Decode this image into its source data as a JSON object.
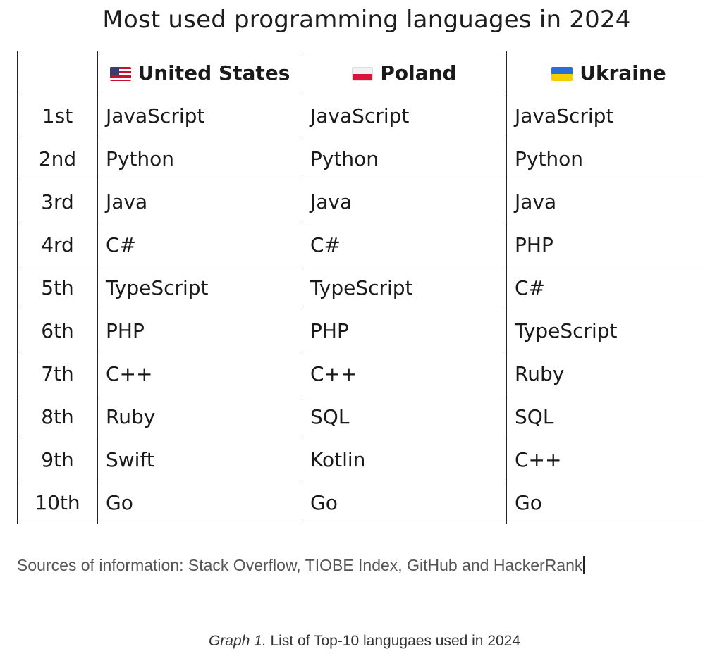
{
  "title": "Most used programming languages in 2024",
  "table": {
    "columns": [
      {
        "flag": "flag-us-icon",
        "label": "United States"
      },
      {
        "flag": "flag-pl-icon",
        "label": "Poland"
      },
      {
        "flag": "flag-ua-icon",
        "label": "Ukraine"
      }
    ],
    "rows": [
      {
        "rank": "1st",
        "values": [
          "JavaScript",
          "JavaScript",
          "JavaScript"
        ]
      },
      {
        "rank": "2nd",
        "values": [
          "Python",
          "Python",
          "Python"
        ]
      },
      {
        "rank": "3rd",
        "values": [
          "Java",
          "Java",
          "Java"
        ]
      },
      {
        "rank": "4rd",
        "values": [
          "C#",
          "C#",
          "PHP"
        ]
      },
      {
        "rank": "5th",
        "values": [
          "TypeScript",
          "TypeScript",
          "C#"
        ]
      },
      {
        "rank": "6th",
        "values": [
          "PHP",
          "PHP",
          "TypeScript"
        ]
      },
      {
        "rank": "7th",
        "values": [
          "C++",
          "C++",
          "Ruby"
        ]
      },
      {
        "rank": "8th",
        "values": [
          "Ruby",
          "SQL",
          "SQL"
        ]
      },
      {
        "rank": "9th",
        "values": [
          "Swift",
          "Kotlin",
          "C++"
        ]
      },
      {
        "rank": "10th",
        "values": [
          "Go",
          "Go",
          "Go"
        ]
      }
    ]
  },
  "sources": "Sources of information: Stack Overflow, TIOBE Index, GitHub and HackerRank",
  "caption": {
    "label": "Graph 1.",
    "text": " List of Top-10 langugaes used in 2024"
  }
}
